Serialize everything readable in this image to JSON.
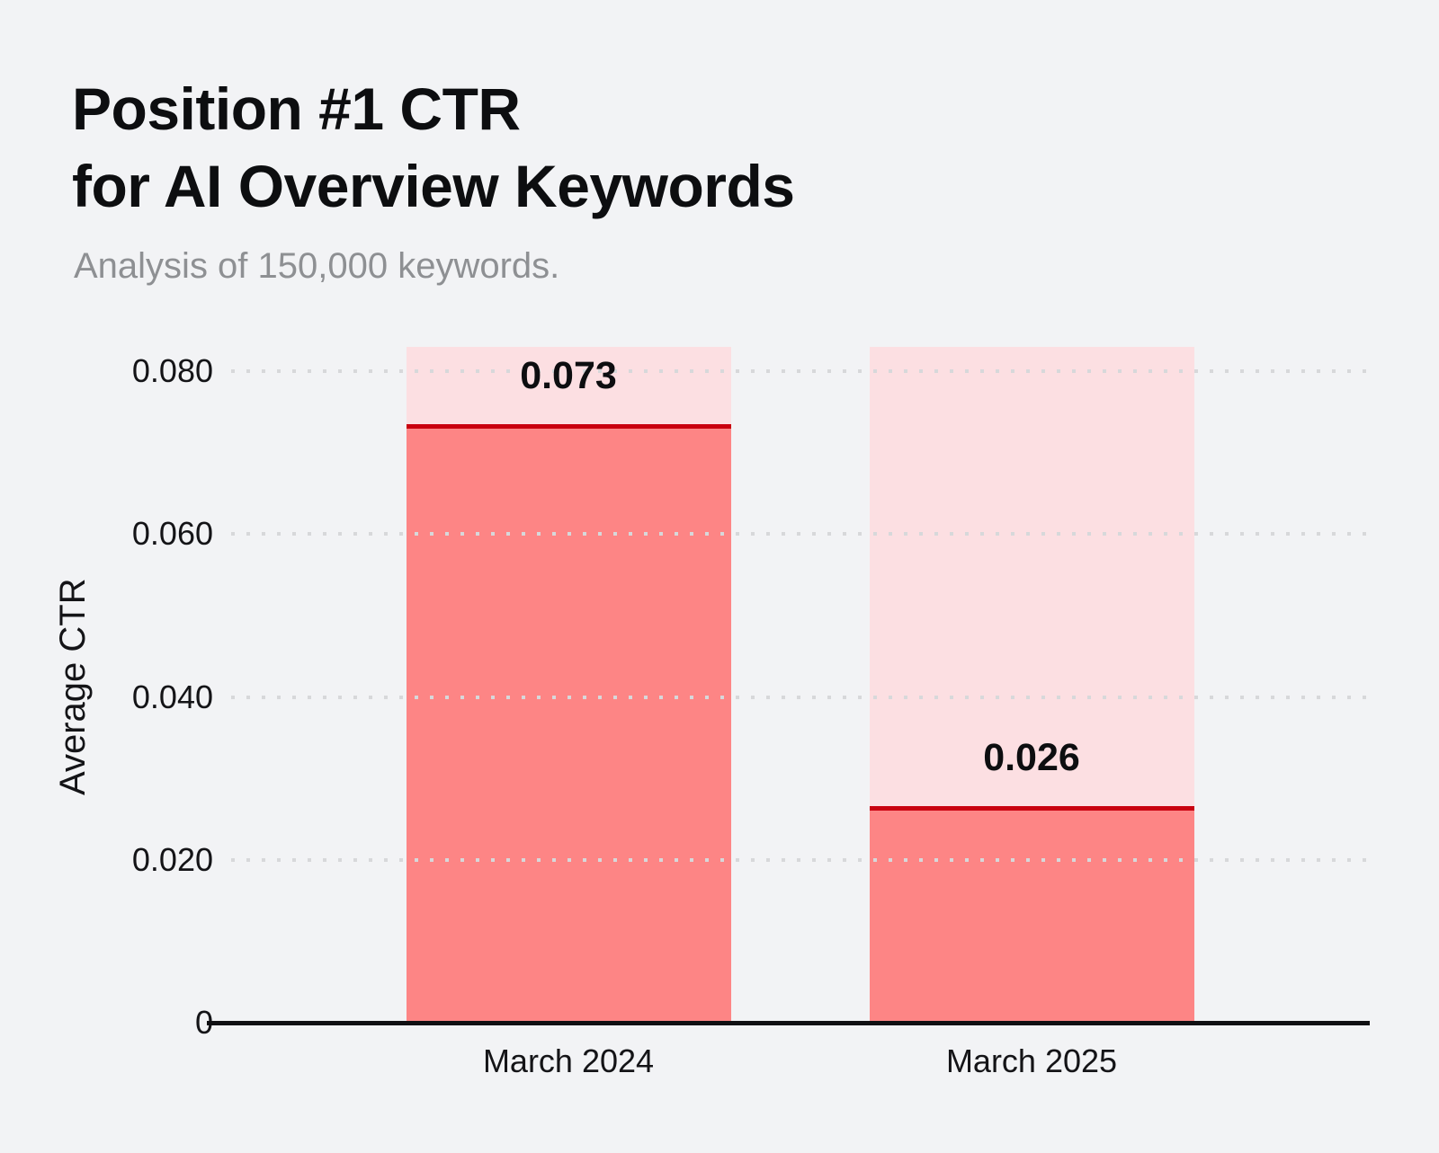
{
  "page": {
    "background_color": "#f2f3f5"
  },
  "header": {
    "title_line1": "Position #1 CTR",
    "title_line2": "for AI Overview Keywords",
    "subtitle": "Analysis of 150,000 keywords."
  },
  "chart_data": {
    "type": "bar",
    "title": "Position #1 CTR for AI Overview Keywords",
    "subtitle": "Analysis of 150,000 keywords.",
    "categories": [
      "March 2024",
      "March 2025"
    ],
    "values": [
      0.073,
      0.026
    ],
    "value_labels": [
      "0.073",
      "0.026"
    ],
    "series": [
      {
        "name": "Average CTR",
        "values": [
          0.073,
          0.026
        ]
      }
    ],
    "xlabel": "",
    "ylabel": "Average CTR",
    "ylim": [
      0,
      0.083
    ],
    "yticks": [
      0,
      0.02,
      0.04,
      0.06,
      0.08
    ],
    "ytick_labels": [
      "0",
      "0.020",
      "0.040",
      "0.060",
      "0.080"
    ],
    "grid": "horizontal dotted gridlines at labeled ticks",
    "legend_position": "none",
    "style_notes": "Each category has a full-height light pink background track; a salmon fill rises to the value and is capped by a dark red horizontal line with the bold value label above it.",
    "colors": {
      "background": "#f2f3f5",
      "bar_track_pink": "#fcdfe2",
      "bar_fill_salmon": "#fd8585",
      "value_line_red": "#c9000f",
      "axis_line_black": "#101013",
      "gridline_dot_gray": "#d7d8da",
      "title_text": "#0d0e10",
      "subtitle_text_gray": "#8e9093",
      "tick_text": "#141417",
      "value_text": "#0d0e10"
    }
  }
}
